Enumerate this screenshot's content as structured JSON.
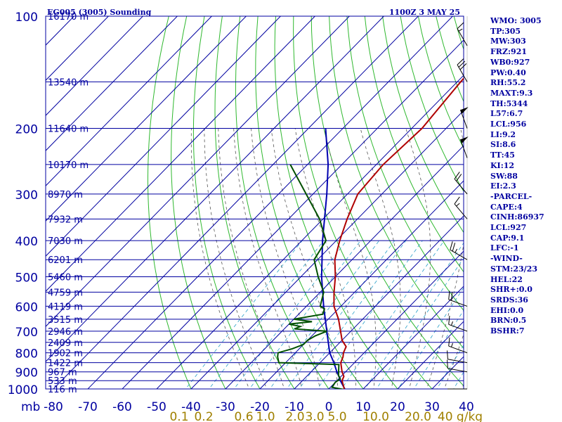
{
  "header": {
    "station": "EG005 (3005) Sounding",
    "time": "1100Z  3 MAY 25"
  },
  "indices": [
    "WMO: 3005",
    "TP:305",
    "MW:303",
    "FRZ:921",
    "WB0:927",
    "PW:0.40",
    "RH:55.2",
    "MAXT:9.3",
    "TH:5344",
    "L57:6.7",
    "LCL:956",
    "LI:9.2",
    "SI:8.6",
    "TT:45",
    "KI:12",
    "SW:88",
    "EI:2.3",
    "-PARCEL-",
    "CAPE:4",
    "CINH:86937",
    "LCL:927",
    "CAP:9.1",
    "LFC:-1",
    "-WIND-",
    "STM:23/23",
    "HEL:22",
    "SHR+:0.0",
    "SRDS:36",
    "EHI:0.0",
    "BRN:0.5",
    "BSHR:7"
  ],
  "colors": {
    "grid": "#0000a0",
    "dry_adiabat": "#2fb82f",
    "moist_adiabat": "#555555",
    "mixing_ratio": "#2aa0c8",
    "temperature": "#b00000",
    "dewpoint": "#005000",
    "parcel": "#0000b0",
    "text_blue": "#0000a0",
    "mix_label": "#a08000",
    "wind_barb": "#000000"
  },
  "chart_data": {
    "type": "skew-t",
    "x_axis_label": "mb",
    "x_ticks": [
      -80,
      -70,
      -60,
      -50,
      -40,
      -30,
      -20,
      -10,
      0,
      10,
      20,
      30,
      40
    ],
    "pressure_levels": [
      100,
      200,
      300,
      400,
      500,
      600,
      700,
      800,
      900,
      1000
    ],
    "height_labels": [
      {
        "p": 100,
        "label": "16170 m"
      },
      {
        "p": 150,
        "label": "13540 m"
      },
      {
        "p": 200,
        "label": "11640 m"
      },
      {
        "p": 250,
        "label": "10170 m"
      },
      {
        "p": 300,
        "label": "8970 m"
      },
      {
        "p": 350,
        "label": "7932 m"
      },
      {
        "p": 400,
        "label": "7030 m"
      },
      {
        "p": 450,
        "label": "6201 m"
      },
      {
        "p": 500,
        "label": "5460 m"
      },
      {
        "p": 550,
        "label": "4759 m"
      },
      {
        "p": 600,
        "label": "4119 m"
      },
      {
        "p": 650,
        "label": "3515 m"
      },
      {
        "p": 700,
        "label": "2946 m"
      },
      {
        "p": 750,
        "label": "2409 m"
      },
      {
        "p": 800,
        "label": "1902 m"
      },
      {
        "p": 850,
        "label": "1422 m"
      },
      {
        "p": 900,
        "label": "967 m"
      },
      {
        "p": 950,
        "label": "533 m"
      },
      {
        "p": 1000,
        "label": "116 m"
      }
    ],
    "mixing_ratio_labels": [
      "0.1",
      "0.2",
      "0.6",
      "1.0",
      "2.0",
      "3.0",
      "5.0",
      "10.0",
      "20.0",
      "40 g/kg"
    ],
    "temperature": [
      [
        1005,
        5
      ],
      [
        1000,
        4.5
      ],
      [
        950,
        1.5
      ],
      [
        925,
        0.8
      ],
      [
        900,
        -1
      ],
      [
        850,
        -4
      ],
      [
        820,
        -5
      ],
      [
        800,
        -6
      ],
      [
        770,
        -7
      ],
      [
        740,
        -10
      ],
      [
        700,
        -13
      ],
      [
        650,
        -17
      ],
      [
        600,
        -22
      ],
      [
        550,
        -26
      ],
      [
        500,
        -30
      ],
      [
        450,
        -35
      ],
      [
        400,
        -39
      ],
      [
        350,
        -43
      ],
      [
        300,
        -47
      ],
      [
        250,
        -48
      ],
      [
        200,
        -47
      ],
      [
        150,
        -49
      ],
      [
        120,
        -50
      ],
      [
        100,
        -52
      ]
    ],
    "dewpoint": [
      [
        1005,
        5
      ],
      [
        990,
        0.5
      ],
      [
        960,
        0
      ],
      [
        940,
        0.5
      ],
      [
        920,
        -1
      ],
      [
        900,
        -2
      ],
      [
        860,
        -4
      ],
      [
        850,
        -22
      ],
      [
        820,
        -24
      ],
      [
        800,
        -25
      ],
      [
        780,
        -22
      ],
      [
        760,
        -20
      ],
      [
        740,
        -20
      ],
      [
        720,
        -19
      ],
      [
        700,
        -17
      ],
      [
        690,
        -27
      ],
      [
        680,
        -26
      ],
      [
        670,
        -30
      ],
      [
        660,
        -24
      ],
      [
        650,
        -30
      ],
      [
        630,
        -23
      ],
      [
        610,
        -24
      ],
      [
        600,
        -26
      ],
      [
        550,
        -29
      ],
      [
        500,
        -35
      ],
      [
        450,
        -41
      ],
      [
        400,
        -43
      ],
      [
        350,
        -51
      ],
      [
        300,
        -62
      ],
      [
        250,
        -75
      ]
    ],
    "parcel": [
      [
        1005,
        5
      ],
      [
        950,
        1
      ],
      [
        927,
        -0.5
      ],
      [
        900,
        -2.5
      ],
      [
        850,
        -6
      ],
      [
        800,
        -10
      ],
      [
        700,
        -17
      ],
      [
        600,
        -25
      ],
      [
        500,
        -34
      ],
      [
        400,
        -44
      ],
      [
        300,
        -56
      ],
      [
        250,
        -64
      ],
      [
        200,
        -75
      ]
    ],
    "wind_barbs": [
      {
        "p": 120,
        "dir": 330,
        "kt": 15
      },
      {
        "p": 150,
        "dir": 330,
        "kt": 30
      },
      {
        "p": 200,
        "dir": 340,
        "kt": 50
      },
      {
        "p": 240,
        "dir": 340,
        "kt": 50
      },
      {
        "p": 300,
        "dir": 320,
        "kt": 20
      },
      {
        "p": 350,
        "dir": 320,
        "kt": 15
      },
      {
        "p": 450,
        "dir": 300,
        "kt": 25
      },
      {
        "p": 600,
        "dir": 290,
        "kt": 20
      },
      {
        "p": 700,
        "dir": 290,
        "kt": 15
      },
      {
        "p": 800,
        "dir": 290,
        "kt": 15
      },
      {
        "p": 850,
        "dir": 280,
        "kt": 10
      },
      {
        "p": 900,
        "dir": 280,
        "kt": 10
      },
      {
        "p": 1000,
        "dir": 270,
        "kt": 0
      }
    ]
  }
}
